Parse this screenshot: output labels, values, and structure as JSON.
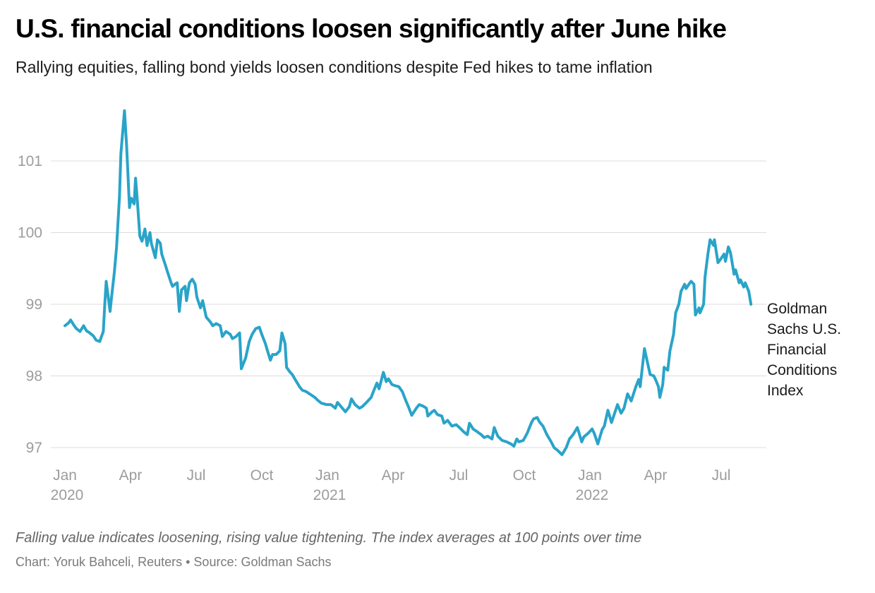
{
  "header": {
    "title": "U.S. financial conditions loosen significantly after June hike",
    "subtitle": "Rallying equities, falling bond yields loosen conditions despite Fed hikes to tame inflation"
  },
  "annotation": {
    "label": "Goldman Sachs U.S. Financial Conditions Index"
  },
  "footer": {
    "note": "Falling value indicates loosening, rising value tightening. The index averages at 100 points over time",
    "credit": "Chart: Yoruk Bahceli, Reuters • Source: Goldman Sachs"
  },
  "colors": {
    "line": "#29a4c9",
    "grid": "#dcdcdc",
    "tick_label": "#9c9c9c",
    "title": "#000000",
    "subtitle": "#1d1d1d",
    "annotation": "#1a1a1a",
    "footnote": "#666666",
    "credit": "#7a7a7a",
    "background": "#ffffff"
  },
  "chart_data": {
    "type": "line",
    "title": "U.S. financial conditions loosen significantly after June hike",
    "subtitle": "Rallying equities, falling bond yields loosen conditions despite Fed hikes to tame inflation",
    "xlabel": "",
    "ylabel": "",
    "grid": "horizontal",
    "legend_position": "right-annotation",
    "ylim": [
      96.8,
      101.85
    ],
    "y_ticks": [
      101,
      100,
      99,
      98,
      97
    ],
    "x_ticks": [
      {
        "date": "2020-01-01",
        "label": "Jan",
        "year": "2020"
      },
      {
        "date": "2020-04-01",
        "label": "Apr"
      },
      {
        "date": "2020-07-01",
        "label": "Jul"
      },
      {
        "date": "2020-10-01",
        "label": "Oct"
      },
      {
        "date": "2021-01-01",
        "label": "Jan",
        "year": "2021"
      },
      {
        "date": "2021-04-01",
        "label": "Apr"
      },
      {
        "date": "2021-07-01",
        "label": "Jul"
      },
      {
        "date": "2021-10-01",
        "label": "Oct"
      },
      {
        "date": "2022-01-01",
        "label": "Jan",
        "year": "2022"
      },
      {
        "date": "2022-04-01",
        "label": "Apr"
      },
      {
        "date": "2022-07-01",
        "label": "Jul"
      }
    ],
    "series": [
      {
        "name": "Goldman Sachs U.S. Financial Conditions Index",
        "color": "#29a4c9",
        "points": [
          [
            "2020-01-01",
            98.7
          ],
          [
            "2020-01-06",
            98.74
          ],
          [
            "2020-01-09",
            98.78
          ],
          [
            "2020-01-14",
            98.7
          ],
          [
            "2020-01-17",
            98.66
          ],
          [
            "2020-01-22",
            98.62
          ],
          [
            "2020-01-27",
            98.7
          ],
          [
            "2020-01-31",
            98.63
          ],
          [
            "2020-02-05",
            98.6
          ],
          [
            "2020-02-10",
            98.56
          ],
          [
            "2020-02-14",
            98.5
          ],
          [
            "2020-02-19",
            98.48
          ],
          [
            "2020-02-24",
            98.62
          ],
          [
            "2020-02-26",
            99.0
          ],
          [
            "2020-02-28",
            99.32
          ],
          [
            "2020-03-03",
            98.9
          ],
          [
            "2020-03-05",
            99.1
          ],
          [
            "2020-03-09",
            99.45
          ],
          [
            "2020-03-12",
            99.8
          ],
          [
            "2020-03-16",
            100.5
          ],
          [
            "2020-03-18",
            101.1
          ],
          [
            "2020-03-23",
            101.7
          ],
          [
            "2020-03-26",
            101.2
          ],
          [
            "2020-03-30",
            100.35
          ],
          [
            "2020-04-02",
            100.48
          ],
          [
            "2020-04-06",
            100.4
          ],
          [
            "2020-04-08",
            100.76
          ],
          [
            "2020-04-10",
            100.5
          ],
          [
            "2020-04-14",
            99.95
          ],
          [
            "2020-04-17",
            99.88
          ],
          [
            "2020-04-21",
            100.05
          ],
          [
            "2020-04-24",
            99.82
          ],
          [
            "2020-04-28",
            100.0
          ],
          [
            "2020-04-30",
            99.85
          ],
          [
            "2020-05-05",
            99.65
          ],
          [
            "2020-05-08",
            99.9
          ],
          [
            "2020-05-12",
            99.85
          ],
          [
            "2020-05-14",
            99.7
          ],
          [
            "2020-05-19",
            99.55
          ],
          [
            "2020-05-22",
            99.45
          ],
          [
            "2020-05-27",
            99.3
          ],
          [
            "2020-05-29",
            99.25
          ],
          [
            "2020-06-02",
            99.28
          ],
          [
            "2020-06-05",
            99.3
          ],
          [
            "2020-06-08",
            98.9
          ],
          [
            "2020-06-11",
            99.2
          ],
          [
            "2020-06-16",
            99.25
          ],
          [
            "2020-06-18",
            99.05
          ],
          [
            "2020-06-22",
            99.3
          ],
          [
            "2020-06-26",
            99.35
          ],
          [
            "2020-06-30",
            99.28
          ],
          [
            "2020-07-02",
            99.1
          ],
          [
            "2020-07-07",
            98.95
          ],
          [
            "2020-07-10",
            99.05
          ],
          [
            "2020-07-15",
            98.82
          ],
          [
            "2020-07-21",
            98.75
          ],
          [
            "2020-07-24",
            98.7
          ],
          [
            "2020-07-29",
            98.73
          ],
          [
            "2020-08-04",
            98.7
          ],
          [
            "2020-08-07",
            98.55
          ],
          [
            "2020-08-12",
            98.62
          ],
          [
            "2020-08-18",
            98.58
          ],
          [
            "2020-08-21",
            98.52
          ],
          [
            "2020-08-26",
            98.55
          ],
          [
            "2020-08-31",
            98.6
          ],
          [
            "2020-09-03",
            98.1
          ],
          [
            "2020-09-09",
            98.25
          ],
          [
            "2020-09-14",
            98.48
          ],
          [
            "2020-09-18",
            98.58
          ],
          [
            "2020-09-23",
            98.66
          ],
          [
            "2020-09-28",
            98.68
          ],
          [
            "2020-10-01",
            98.58
          ],
          [
            "2020-10-06",
            98.45
          ],
          [
            "2020-10-09",
            98.35
          ],
          [
            "2020-10-13",
            98.22
          ],
          [
            "2020-10-16",
            98.3
          ],
          [
            "2020-10-21",
            98.3
          ],
          [
            "2020-10-26",
            98.35
          ],
          [
            "2020-10-29",
            98.6
          ],
          [
            "2020-11-03",
            98.45
          ],
          [
            "2020-11-05",
            98.12
          ],
          [
            "2020-11-10",
            98.05
          ],
          [
            "2020-11-13",
            98.02
          ],
          [
            "2020-11-17",
            97.95
          ],
          [
            "2020-11-23",
            97.85
          ],
          [
            "2020-11-27",
            97.8
          ],
          [
            "2020-12-02",
            97.78
          ],
          [
            "2020-12-08",
            97.74
          ],
          [
            "2020-12-14",
            97.7
          ],
          [
            "2020-12-18",
            97.66
          ],
          [
            "2020-12-23",
            97.62
          ],
          [
            "2020-12-30",
            97.6
          ],
          [
            "2021-01-06",
            97.6
          ],
          [
            "2021-01-12",
            97.55
          ],
          [
            "2021-01-15",
            97.63
          ],
          [
            "2021-01-20",
            97.57
          ],
          [
            "2021-01-26",
            97.5
          ],
          [
            "2021-02-01",
            97.57
          ],
          [
            "2021-02-04",
            97.68
          ],
          [
            "2021-02-09",
            97.6
          ],
          [
            "2021-02-15",
            97.55
          ],
          [
            "2021-02-19",
            97.57
          ],
          [
            "2021-02-24",
            97.62
          ],
          [
            "2021-03-01",
            97.7
          ],
          [
            "2021-03-04",
            97.78
          ],
          [
            "2021-03-09",
            97.9
          ],
          [
            "2021-03-12",
            97.82
          ],
          [
            "2021-03-18",
            98.05
          ],
          [
            "2021-03-22",
            97.92
          ],
          [
            "2021-03-25",
            97.96
          ],
          [
            "2021-03-30",
            97.88
          ],
          [
            "2021-04-05",
            97.86
          ],
          [
            "2021-04-09",
            97.85
          ],
          [
            "2021-04-14",
            97.78
          ],
          [
            "2021-04-19",
            97.65
          ],
          [
            "2021-04-22",
            97.58
          ],
          [
            "2021-04-27",
            97.45
          ],
          [
            "2021-05-03",
            97.55
          ],
          [
            "2021-05-07",
            97.6
          ],
          [
            "2021-05-12",
            97.58
          ],
          [
            "2021-05-17",
            97.55
          ],
          [
            "2021-05-19",
            97.44
          ],
          [
            "2021-05-25",
            97.5
          ],
          [
            "2021-05-28",
            97.52
          ],
          [
            "2021-06-02",
            97.46
          ],
          [
            "2021-06-08",
            97.44
          ],
          [
            "2021-06-11",
            97.34
          ],
          [
            "2021-06-16",
            97.38
          ],
          [
            "2021-06-22",
            97.3
          ],
          [
            "2021-06-28",
            97.32
          ],
          [
            "2021-07-02",
            97.28
          ],
          [
            "2021-07-08",
            97.22
          ],
          [
            "2021-07-13",
            97.18
          ],
          [
            "2021-07-16",
            97.34
          ],
          [
            "2021-07-21",
            97.26
          ],
          [
            "2021-07-27",
            97.22
          ],
          [
            "2021-08-02",
            97.18
          ],
          [
            "2021-08-06",
            97.14
          ],
          [
            "2021-08-11",
            97.16
          ],
          [
            "2021-08-17",
            97.12
          ],
          [
            "2021-08-20",
            97.28
          ],
          [
            "2021-08-25",
            97.16
          ],
          [
            "2021-08-31",
            97.1
          ],
          [
            "2021-09-07",
            97.08
          ],
          [
            "2021-09-13",
            97.05
          ],
          [
            "2021-09-17",
            97.02
          ],
          [
            "2021-09-21",
            97.12
          ],
          [
            "2021-09-24",
            97.08
          ],
          [
            "2021-09-30",
            97.1
          ],
          [
            "2021-10-05",
            97.2
          ],
          [
            "2021-10-11",
            97.35
          ],
          [
            "2021-10-14",
            97.4
          ],
          [
            "2021-10-19",
            97.42
          ],
          [
            "2021-10-22",
            97.36
          ],
          [
            "2021-10-27",
            97.3
          ],
          [
            "2021-11-02",
            97.18
          ],
          [
            "2021-11-08",
            97.08
          ],
          [
            "2021-11-12",
            97.0
          ],
          [
            "2021-11-17",
            96.96
          ],
          [
            "2021-11-23",
            96.9
          ],
          [
            "2021-11-29",
            97.0
          ],
          [
            "2021-12-03",
            97.12
          ],
          [
            "2021-12-08",
            97.18
          ],
          [
            "2021-12-14",
            97.28
          ],
          [
            "2021-12-20",
            97.08
          ],
          [
            "2021-12-23",
            97.15
          ],
          [
            "2021-12-29",
            97.2
          ],
          [
            "2022-01-04",
            97.26
          ],
          [
            "2022-01-07",
            97.2
          ],
          [
            "2022-01-12",
            97.05
          ],
          [
            "2022-01-18",
            97.25
          ],
          [
            "2022-01-21",
            97.3
          ],
          [
            "2022-01-26",
            97.52
          ],
          [
            "2022-01-31",
            97.35
          ],
          [
            "2022-02-03",
            97.42
          ],
          [
            "2022-02-09",
            97.6
          ],
          [
            "2022-02-14",
            97.48
          ],
          [
            "2022-02-18",
            97.55
          ],
          [
            "2022-02-23",
            97.75
          ],
          [
            "2022-02-28",
            97.65
          ],
          [
            "2022-03-04",
            97.85
          ],
          [
            "2022-03-08",
            97.95
          ],
          [
            "2022-03-10",
            97.85
          ],
          [
            "2022-03-14",
            98.2
          ],
          [
            "2022-03-16",
            98.38
          ],
          [
            "2022-03-21",
            98.15
          ],
          [
            "2022-03-24",
            98.02
          ],
          [
            "2022-03-29",
            98.0
          ],
          [
            "2022-04-01",
            97.95
          ],
          [
            "2022-04-05",
            97.85
          ],
          [
            "2022-04-07",
            97.7
          ],
          [
            "2022-04-11",
            97.88
          ],
          [
            "2022-04-13",
            98.12
          ],
          [
            "2022-04-18",
            98.08
          ],
          [
            "2022-04-21",
            98.35
          ],
          [
            "2022-04-26",
            98.58
          ],
          [
            "2022-04-29",
            98.88
          ],
          [
            "2022-05-03",
            99.0
          ],
          [
            "2022-05-06",
            99.18
          ],
          [
            "2022-05-11",
            99.28
          ],
          [
            "2022-05-13",
            99.22
          ],
          [
            "2022-05-17",
            99.28
          ],
          [
            "2022-05-20",
            99.32
          ],
          [
            "2022-05-24",
            99.28
          ],
          [
            "2022-05-26",
            98.85
          ],
          [
            "2022-05-31",
            98.95
          ],
          [
            "2022-06-02",
            98.88
          ],
          [
            "2022-06-07",
            99.0
          ],
          [
            "2022-06-09",
            99.38
          ],
          [
            "2022-06-13",
            99.7
          ],
          [
            "2022-06-16",
            99.9
          ],
          [
            "2022-06-21",
            99.82
          ],
          [
            "2022-06-22",
            99.9
          ],
          [
            "2022-06-27",
            99.58
          ],
          [
            "2022-06-30",
            99.62
          ],
          [
            "2022-07-05",
            99.7
          ],
          [
            "2022-07-07",
            99.6
          ],
          [
            "2022-07-11",
            99.8
          ],
          [
            "2022-07-14",
            99.72
          ],
          [
            "2022-07-19",
            99.42
          ],
          [
            "2022-07-21",
            99.48
          ],
          [
            "2022-07-26",
            99.3
          ],
          [
            "2022-07-28",
            99.34
          ],
          [
            "2022-08-02",
            99.24
          ],
          [
            "2022-08-04",
            99.3
          ],
          [
            "2022-08-09",
            99.18
          ],
          [
            "2022-08-12",
            99.0
          ]
        ]
      }
    ]
  }
}
